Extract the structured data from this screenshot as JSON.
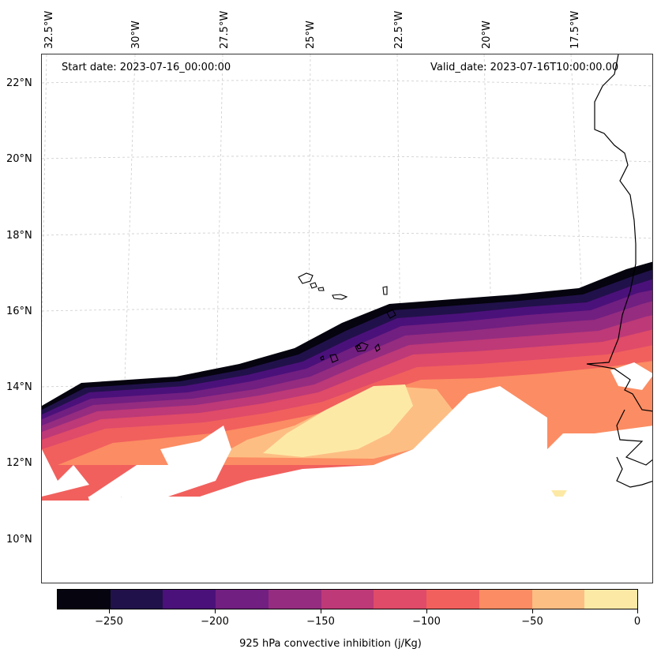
{
  "map": {
    "lon_labels": [
      "32.5°W",
      "30°W",
      "27.5°W",
      "25°W",
      "22.5°W",
      "20°W",
      "17.5°W"
    ],
    "lat_labels": [
      "22°N",
      "20°N",
      "18°N",
      "16°N",
      "14°N",
      "12°N",
      "10°N"
    ],
    "start_date": "Start date: 2023-07-16_00:00:00",
    "valid_date": "Valid_date: 2023-07-16T10:00:00.00",
    "coastline_color": "#000000",
    "gridline_color": "#cccccc"
  },
  "colorbar": {
    "title": "925 hPa convective inhibition (j/Kg)",
    "tick_labels": [
      "−250",
      "−200",
      "−150",
      "−100",
      "−50",
      "0"
    ],
    "levels": [
      -275,
      -250,
      -225,
      -200,
      -175,
      -150,
      -125,
      -100,
      -75,
      -50,
      -25,
      0
    ],
    "colors": [
      "#05040f",
      "#21114a",
      "#4b117a",
      "#711f81",
      "#952c80",
      "#bd3977",
      "#df4b68",
      "#f1605d",
      "#fc8c63",
      "#fdbe84",
      "#fde9a6"
    ]
  }
}
